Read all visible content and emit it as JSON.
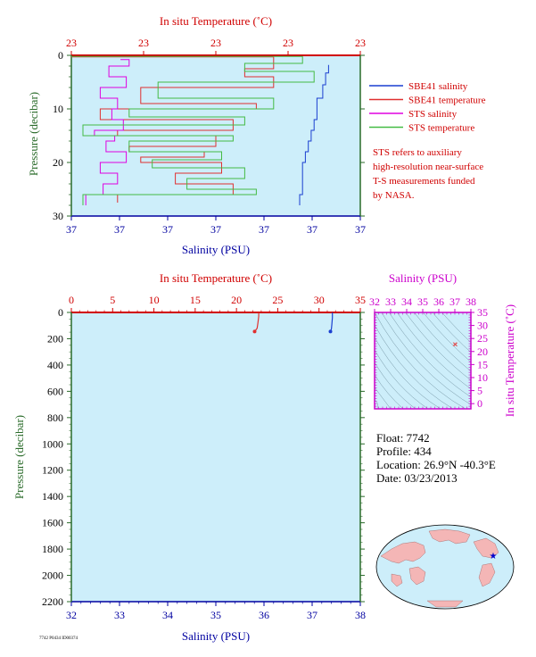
{
  "colors": {
    "plot_bg": "#cdeefa",
    "temperature_axis": "#d00000",
    "salinity_axis": "#0000a0",
    "pressure_axis": "#2a6b2a",
    "sbe41_salinity": "#1a3fd0",
    "sbe41_temperature": "#e03030",
    "sts_salinity": "#e000e0",
    "sts_temperature": "#44bb44",
    "ts_axis": "#cc00cc"
  },
  "float_info": {
    "float": "Float:  7742",
    "profile": "Profile:  434",
    "location": "Location:  26.9°N  -40.3°E",
    "date": "Date:  03/23/2013"
  },
  "legend": [
    {
      "label": "SBE41 salinity",
      "color": "#1a3fd0"
    },
    {
      "label": "SBE41 temperature",
      "color": "#e03030"
    },
    {
      "label": "STS salinity",
      "color": "#e000e0"
    },
    {
      "label": "STS temperature",
      "color": "#44bb44"
    }
  ],
  "note_lines": [
    "STS refers to auxiliary",
    "high-resolution near-surface",
    "T-S measurements funded",
    "by NASA."
  ],
  "footer_code": "7742 P0434 ID00374",
  "chart_data": [
    {
      "type": "line",
      "panel": "near-surface",
      "top_axis_label": "In situ Temperature (˚C)",
      "top_tick_labels": [
        "23",
        "23",
        "23",
        "23",
        "23"
      ],
      "bottom_axis_label": "Salinity (PSU)",
      "bottom_tick_labels": [
        "37",
        "37",
        "37",
        "37",
        "37",
        "37",
        "37"
      ],
      "ylabel": "Pressure (decibar)",
      "y_tick_labels": [
        "0",
        "10",
        "20",
        "30"
      ],
      "ylim": [
        0,
        30
      ],
      "temperature_range": [
        22.6,
        23.1
      ],
      "salinity_range": [
        36.95,
        37.05
      ],
      "grid": false,
      "series": [
        {
          "name": "SBE41 salinity",
          "x_unit": "PSU",
          "values": [
            [
              37.039,
              1.8
            ],
            [
              37.039,
              3.3
            ],
            [
              37.038,
              5.5
            ],
            [
              37.037,
              8
            ],
            [
              37.035,
              12
            ],
            [
              37.034,
              14
            ],
            [
              37.033,
              16
            ],
            [
              37.032,
              18
            ],
            [
              37.031,
              20
            ],
            [
              37.03,
              22
            ],
            [
              37.03,
              24
            ],
            [
              37.03,
              26
            ],
            [
              37.029,
              28
            ]
          ]
        },
        {
          "name": "SBE41 temperature",
          "x_unit": "degC",
          "values": [
            [
              22.6,
              0.3
            ],
            [
              22.95,
              2.5
            ],
            [
              22.9,
              4
            ],
            [
              22.95,
              6
            ],
            [
              22.72,
              9
            ],
            [
              22.92,
              10
            ],
            [
              22.65,
              12
            ],
            [
              22.88,
              14
            ],
            [
              22.68,
              15
            ],
            [
              22.85,
              17
            ],
            [
              22.7,
              18
            ],
            [
              22.83,
              19
            ],
            [
              22.72,
              20
            ],
            [
              22.86,
              22
            ],
            [
              22.78,
              24
            ],
            [
              22.88,
              26
            ],
            [
              22.68,
              27.5
            ]
          ]
        },
        {
          "name": "STS salinity",
          "x_unit": "PSU",
          "values": [
            [
              36.967,
              0.8
            ],
            [
              36.97,
              2
            ],
            [
              36.963,
              4
            ],
            [
              36.969,
              6
            ],
            [
              36.96,
              8
            ],
            [
              36.966,
              10
            ],
            [
              36.964,
              12
            ],
            [
              36.968,
              14
            ],
            [
              36.958,
              15
            ],
            [
              36.965,
              16
            ],
            [
              36.962,
              18
            ],
            [
              36.969,
              20
            ],
            [
              36.96,
              22
            ],
            [
              36.966,
              24
            ],
            [
              36.961,
              26
            ],
            [
              36.955,
              28
            ]
          ]
        },
        {
          "name": "STS temperature",
          "x_unit": "degC",
          "values": [
            [
              22.6,
              0.2
            ],
            [
              23.0,
              1.5
            ],
            [
              22.9,
              3
            ],
            [
              23.02,
              5
            ],
            [
              22.75,
              8
            ],
            [
              22.95,
              10
            ],
            [
              22.7,
              11.5
            ],
            [
              22.9,
              13
            ],
            [
              22.62,
              15
            ],
            [
              22.88,
              16
            ],
            [
              22.7,
              18
            ],
            [
              22.86,
              19.5
            ],
            [
              22.74,
              21
            ],
            [
              22.9,
              23
            ],
            [
              22.8,
              25
            ],
            [
              22.92,
              26
            ],
            [
              22.62,
              28
            ]
          ]
        }
      ]
    },
    {
      "type": "line",
      "panel": "full-profile",
      "top_axis_label": "In situ Temperature (˚C)",
      "temperature_ticks": [
        0,
        5,
        10,
        15,
        20,
        25,
        30,
        35
      ],
      "bottom_axis_label": "Salinity (PSU)",
      "salinity_ticks": [
        32,
        33,
        34,
        35,
        36,
        37,
        38
      ],
      "ylabel": "Pressure (decibar)",
      "pressure_ticks": [
        0,
        200,
        400,
        600,
        800,
        1000,
        1200,
        1400,
        1600,
        1800,
        2000,
        2200
      ],
      "ylim": [
        0,
        2200
      ],
      "xlim_temperature": [
        0,
        35
      ],
      "xlim_salinity": [
        32,
        38
      ],
      "grid": false,
      "series": [
        {
          "name": "SBE41 temperature",
          "x_unit": "degC",
          "values": [
            [
              22.7,
              0
            ],
            [
              22.7,
              30
            ],
            [
              22.6,
              80
            ],
            [
              22.5,
              120
            ],
            [
              22.2,
              145
            ]
          ]
        },
        {
          "name": "SBE41 salinity",
          "x_unit": "PSU",
          "values": [
            [
              37.42,
              0
            ],
            [
              37.42,
              40
            ],
            [
              37.41,
              90
            ],
            [
              37.4,
              125
            ],
            [
              37.38,
              145
            ]
          ]
        }
      ]
    },
    {
      "type": "scatter",
      "panel": "T-S diagram",
      "xlabel": "Salinity (PSU)",
      "ylabel": "In situ Temperature (˚C)",
      "x_ticks": [
        32,
        33,
        34,
        35,
        36,
        37,
        38
      ],
      "y_ticks": [
        0,
        5,
        10,
        15,
        20,
        25,
        30,
        35
      ],
      "xlim": [
        32,
        38
      ],
      "ylim": [
        -2,
        35
      ],
      "points": [
        [
          37.0,
          22.8
        ],
        [
          37.04,
          22.7
        ]
      ]
    }
  ]
}
